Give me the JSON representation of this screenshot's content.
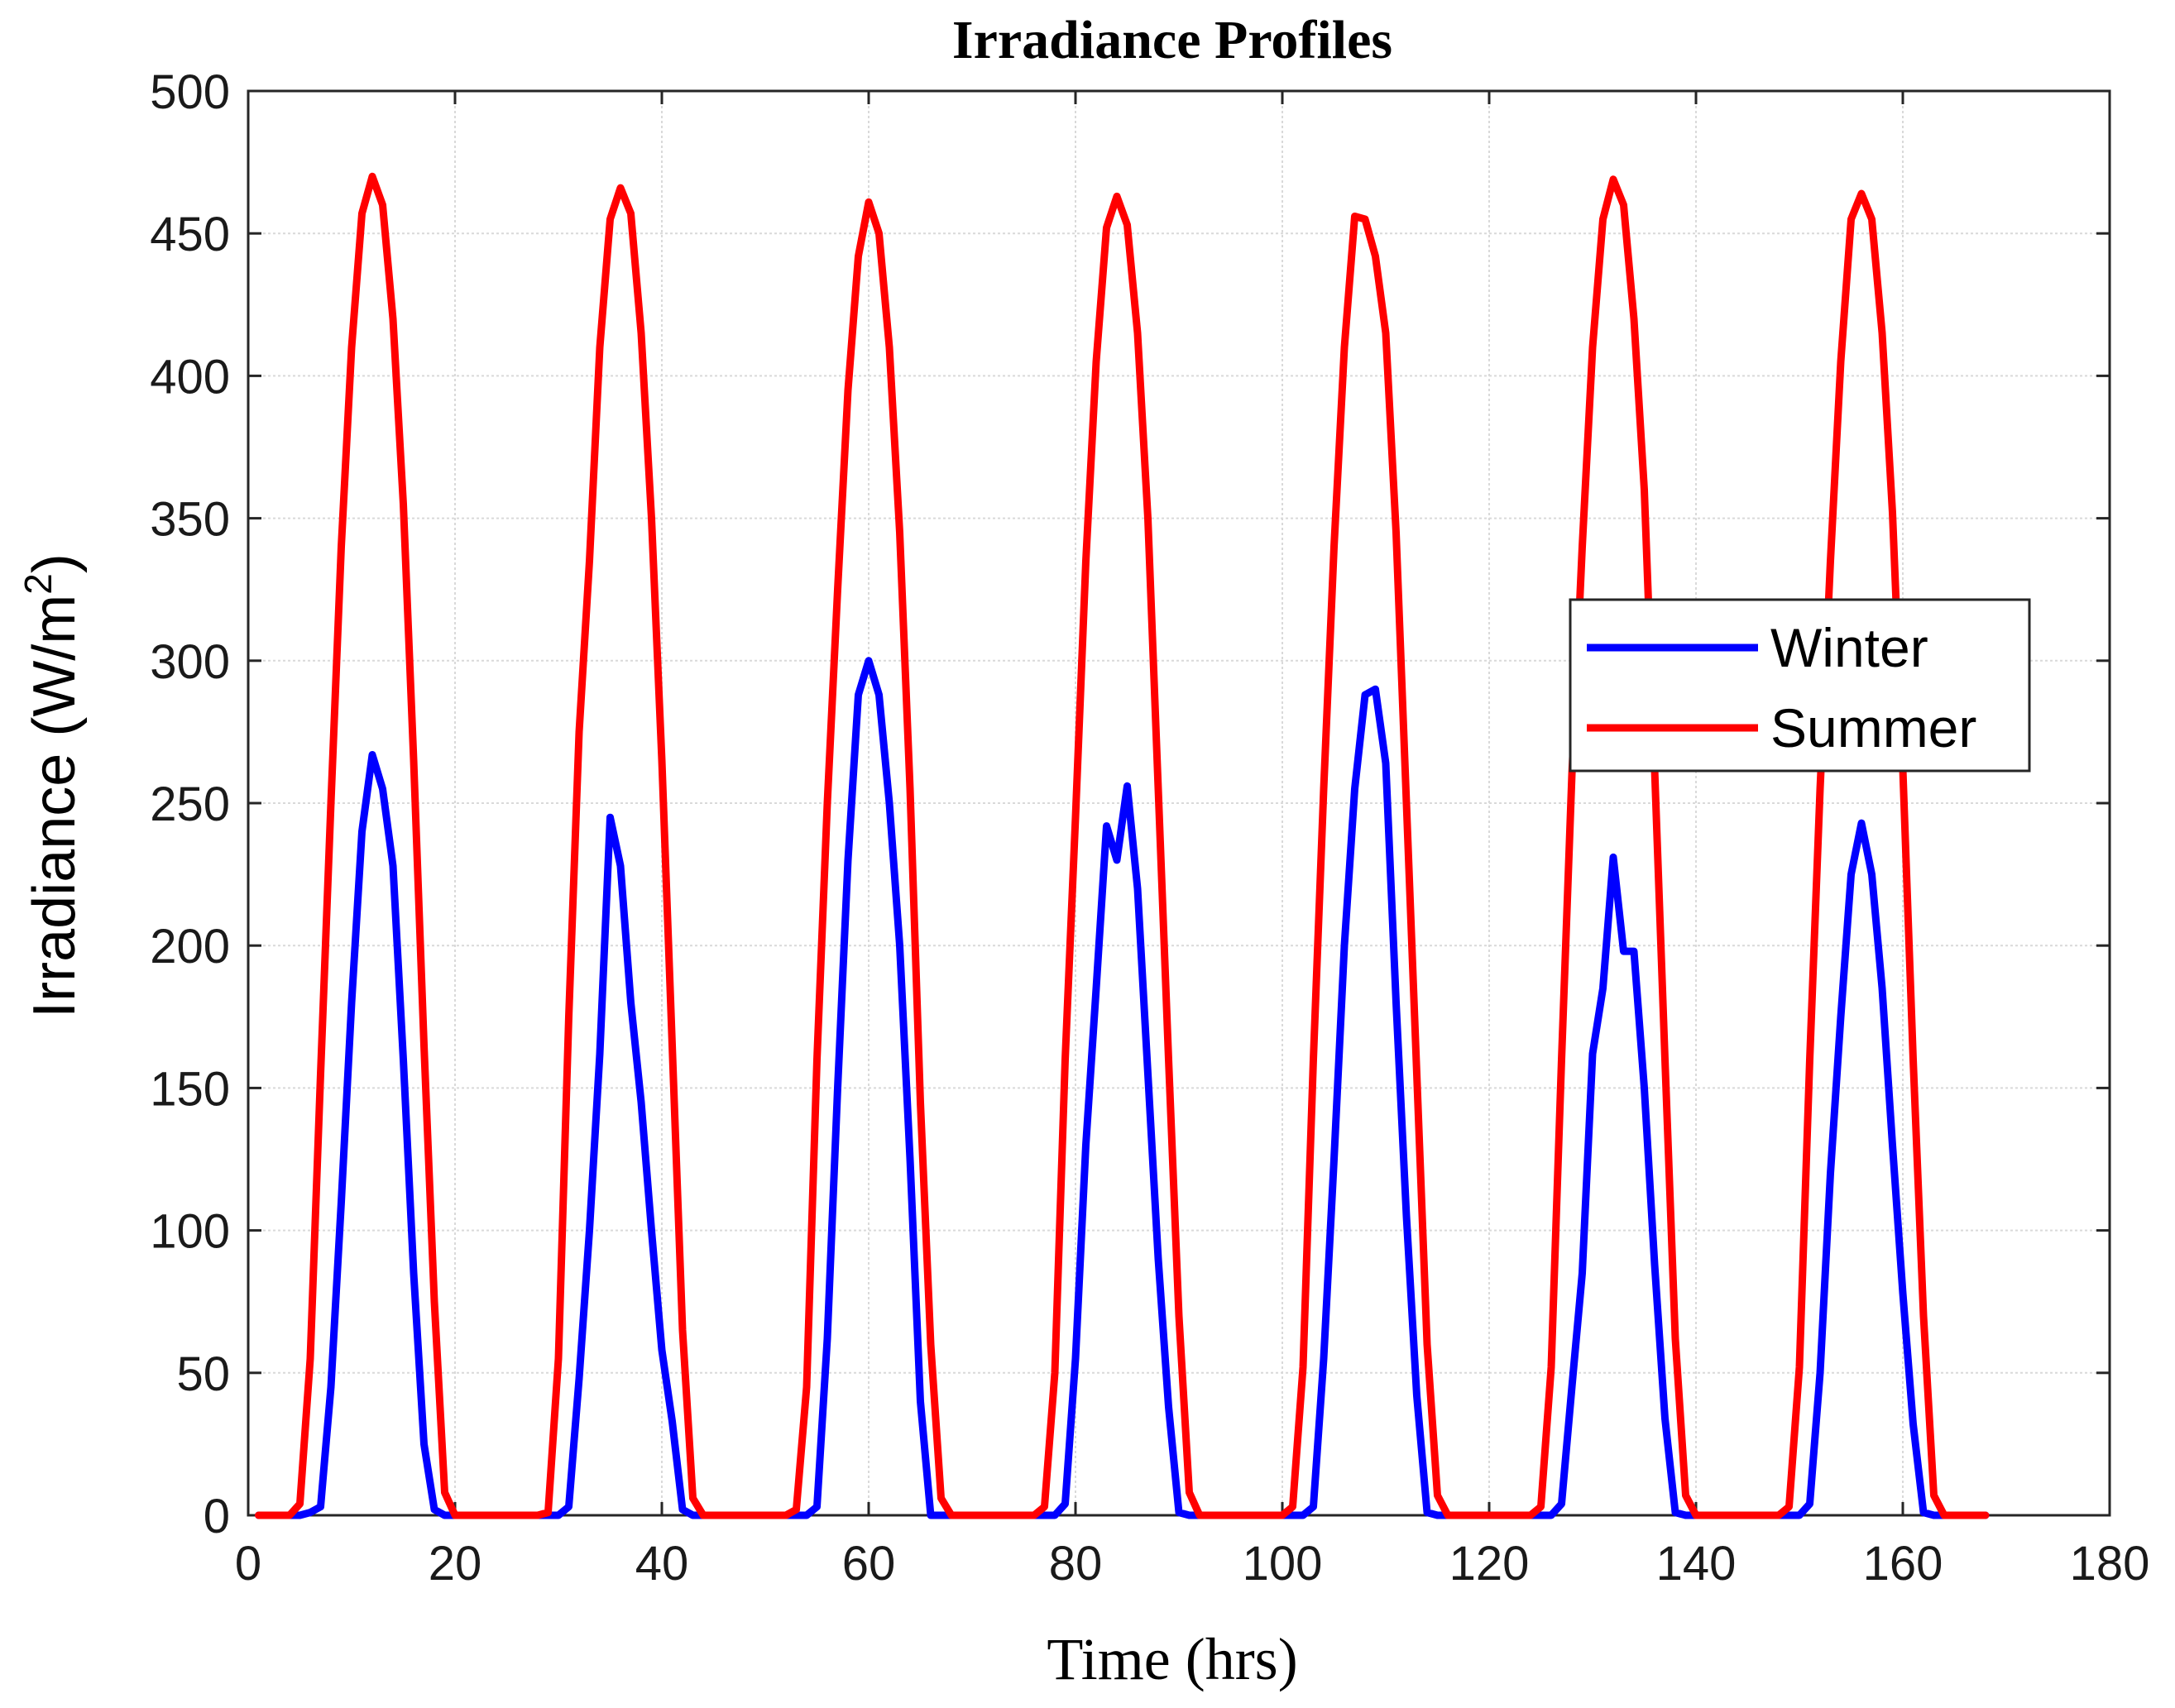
{
  "chart_data": {
    "type": "line",
    "title": "Irradiance Profiles",
    "xlabel": "Time (hrs)",
    "ylabel": "Irradiance (W/m",
    "ylabel_sup": "2",
    "ylabel_close": ")",
    "xlim": [
      0,
      180
    ],
    "ylim": [
      0,
      500
    ],
    "xticks": [
      0,
      20,
      40,
      60,
      80,
      100,
      120,
      140,
      160,
      180
    ],
    "yticks": [
      0,
      50,
      100,
      150,
      200,
      250,
      300,
      350,
      400,
      450,
      500
    ],
    "grid": true,
    "legend": "right",
    "series": [
      {
        "name": "Winter",
        "color": "#0000ff",
        "points": [
          [
            1,
            0
          ],
          [
            5,
            0
          ],
          [
            6,
            1
          ],
          [
            7,
            3
          ],
          [
            8,
            45
          ],
          [
            9,
            110
          ],
          [
            10,
            180
          ],
          [
            11,
            240
          ],
          [
            12,
            267
          ],
          [
            13,
            255
          ],
          [
            14,
            228
          ],
          [
            15,
            160
          ],
          [
            16,
            85
          ],
          [
            17,
            25
          ],
          [
            18,
            2
          ],
          [
            19,
            0
          ],
          [
            29,
            0
          ],
          [
            30,
            0
          ],
          [
            31,
            3
          ],
          [
            32,
            48
          ],
          [
            33,
            100
          ],
          [
            34,
            162
          ],
          [
            35,
            245
          ],
          [
            36,
            228
          ],
          [
            37,
            180
          ],
          [
            38,
            145
          ],
          [
            39,
            100
          ],
          [
            40,
            58
          ],
          [
            41,
            33
          ],
          [
            42,
            2
          ],
          [
            43,
            0
          ],
          [
            53,
            0
          ],
          [
            54,
            0
          ],
          [
            55,
            3
          ],
          [
            56,
            62
          ],
          [
            57,
            150
          ],
          [
            58,
            230
          ],
          [
            59,
            288
          ],
          [
            60,
            300
          ],
          [
            61,
            288
          ],
          [
            62,
            250
          ],
          [
            63,
            200
          ],
          [
            64,
            125
          ],
          [
            65,
            40
          ],
          [
            66,
            0
          ],
          [
            77,
            0
          ],
          [
            78,
            0
          ],
          [
            79,
            4
          ],
          [
            80,
            55
          ],
          [
            81,
            130
          ],
          [
            82,
            185
          ],
          [
            83,
            242
          ],
          [
            84,
            230
          ],
          [
            85,
            256
          ],
          [
            86,
            220
          ],
          [
            87,
            155
          ],
          [
            88,
            90
          ],
          [
            89,
            38
          ],
          [
            90,
            1
          ],
          [
            91,
            0
          ],
          [
            101,
            0
          ],
          [
            102,
            0
          ],
          [
            103,
            3
          ],
          [
            104,
            55
          ],
          [
            105,
            125
          ],
          [
            106,
            200
          ],
          [
            107,
            255
          ],
          [
            108,
            288
          ],
          [
            109,
            290
          ],
          [
            110,
            264
          ],
          [
            111,
            180
          ],
          [
            112,
            105
          ],
          [
            113,
            42
          ],
          [
            114,
            1
          ],
          [
            115,
            0
          ],
          [
            125,
            0
          ],
          [
            126,
            0
          ],
          [
            127,
            4
          ],
          [
            128,
            45
          ],
          [
            129,
            85
          ],
          [
            130,
            162
          ],
          [
            131,
            185
          ],
          [
            132,
            231
          ],
          [
            133,
            198
          ],
          [
            134,
            198
          ],
          [
            135,
            150
          ],
          [
            136,
            88
          ],
          [
            137,
            34
          ],
          [
            138,
            1
          ],
          [
            139,
            0
          ],
          [
            149,
            0
          ],
          [
            150,
            0
          ],
          [
            151,
            4
          ],
          [
            152,
            50
          ],
          [
            153,
            120
          ],
          [
            154,
            175
          ],
          [
            155,
            225
          ],
          [
            156,
            243
          ],
          [
            157,
            225
          ],
          [
            158,
            185
          ],
          [
            159,
            130
          ],
          [
            160,
            78
          ],
          [
            161,
            32
          ],
          [
            162,
            1
          ],
          [
            163,
            0
          ],
          [
            168,
            0
          ]
        ]
      },
      {
        "name": "Summer",
        "color": "#ff0000",
        "points": [
          [
            1,
            0
          ],
          [
            4,
            0
          ],
          [
            5,
            4
          ],
          [
            6,
            55
          ],
          [
            7,
            155
          ],
          [
            8,
            250
          ],
          [
            9,
            340
          ],
          [
            10,
            410
          ],
          [
            11,
            457
          ],
          [
            12,
            470
          ],
          [
            13,
            460
          ],
          [
            14,
            420
          ],
          [
            15,
            355
          ],
          [
            16,
            265
          ],
          [
            17,
            165
          ],
          [
            18,
            75
          ],
          [
            19,
            8
          ],
          [
            20,
            0
          ],
          [
            28,
            0
          ],
          [
            29,
            1
          ],
          [
            30,
            55
          ],
          [
            31,
            175
          ],
          [
            32,
            275
          ],
          [
            33,
            335
          ],
          [
            34,
            410
          ],
          [
            35,
            455
          ],
          [
            36,
            466
          ],
          [
            37,
            457
          ],
          [
            38,
            415
          ],
          [
            39,
            350
          ],
          [
            40,
            265
          ],
          [
            41,
            165
          ],
          [
            42,
            65
          ],
          [
            43,
            6
          ],
          [
            44,
            0
          ],
          [
            52,
            0
          ],
          [
            53,
            2
          ],
          [
            54,
            45
          ],
          [
            55,
            160
          ],
          [
            56,
            250
          ],
          [
            57,
            325
          ],
          [
            58,
            395
          ],
          [
            59,
            442
          ],
          [
            60,
            461
          ],
          [
            61,
            450
          ],
          [
            62,
            410
          ],
          [
            63,
            345
          ],
          [
            64,
            255
          ],
          [
            65,
            145
          ],
          [
            66,
            60
          ],
          [
            67,
            6
          ],
          [
            68,
            0
          ],
          [
            76,
            0
          ],
          [
            77,
            3
          ],
          [
            78,
            50
          ],
          [
            79,
            160
          ],
          [
            80,
            245
          ],
          [
            81,
            335
          ],
          [
            82,
            405
          ],
          [
            83,
            452
          ],
          [
            84,
            463
          ],
          [
            85,
            453
          ],
          [
            86,
            415
          ],
          [
            87,
            350
          ],
          [
            88,
            255
          ],
          [
            89,
            160
          ],
          [
            90,
            70
          ],
          [
            91,
            8
          ],
          [
            92,
            0
          ],
          [
            100,
            0
          ],
          [
            101,
            3
          ],
          [
            102,
            52
          ],
          [
            103,
            160
          ],
          [
            104,
            255
          ],
          [
            105,
            340
          ],
          [
            106,
            410
          ],
          [
            107,
            456
          ],
          [
            108,
            455
          ],
          [
            109,
            442
          ],
          [
            110,
            415
          ],
          [
            111,
            345
          ],
          [
            112,
            250
          ],
          [
            113,
            155
          ],
          [
            114,
            60
          ],
          [
            115,
            7
          ],
          [
            116,
            0
          ],
          [
            124,
            0
          ],
          [
            125,
            3
          ],
          [
            126,
            52
          ],
          [
            127,
            160
          ],
          [
            128,
            260
          ],
          [
            129,
            340
          ],
          [
            130,
            410
          ],
          [
            131,
            455
          ],
          [
            132,
            469
          ],
          [
            133,
            460
          ],
          [
            134,
            420
          ],
          [
            135,
            360
          ],
          [
            136,
            262
          ],
          [
            137,
            160
          ],
          [
            138,
            62
          ],
          [
            139,
            7
          ],
          [
            140,
            0
          ],
          [
            148,
            0
          ],
          [
            149,
            3
          ],
          [
            150,
            52
          ],
          [
            151,
            160
          ],
          [
            152,
            255
          ],
          [
            153,
            335
          ],
          [
            154,
            405
          ],
          [
            155,
            455
          ],
          [
            156,
            464
          ],
          [
            157,
            455
          ],
          [
            158,
            415
          ],
          [
            159,
            352
          ],
          [
            160,
            262
          ],
          [
            161,
            160
          ],
          [
            162,
            70
          ],
          [
            163,
            7
          ],
          [
            164,
            0
          ],
          [
            168,
            0
          ]
        ]
      }
    ]
  }
}
